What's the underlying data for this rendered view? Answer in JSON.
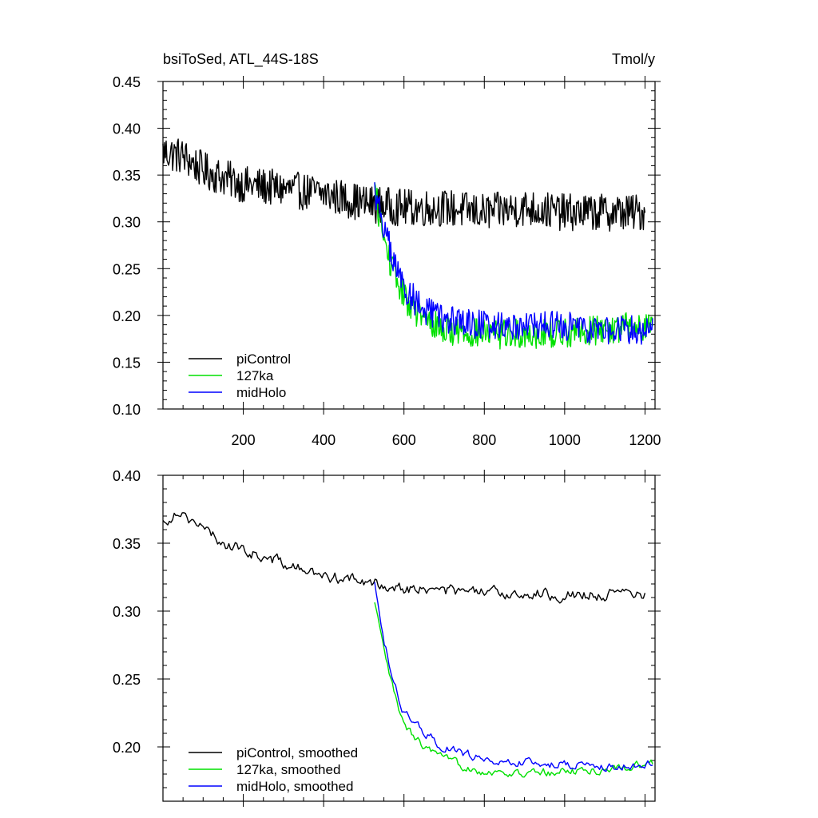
{
  "header": {
    "title_left": "bsiToSed, ATL_44S-18S",
    "title_right": "Tmol/y"
  },
  "colors": {
    "piControl": "#000000",
    "127ka": "#00e000",
    "midHolo": "#0000ff"
  },
  "chart_data": [
    {
      "type": "line",
      "title": "bsiToSed, ATL_44S-18S",
      "units": "Tmol/y",
      "xlim": [
        0,
        1225
      ],
      "ylim": [
        0.1,
        0.45
      ],
      "xticks": [
        200,
        400,
        600,
        800,
        1000,
        1200
      ],
      "xtick_labels": [
        "200",
        "400",
        "600",
        "800",
        "1000",
        "1200"
      ],
      "yticks": [
        0.1,
        0.15,
        0.2,
        0.25,
        0.3,
        0.35,
        0.4,
        0.45
      ],
      "ytick_labels": [
        "0.10",
        "0.15",
        "0.20",
        "0.25",
        "0.30",
        "0.35",
        "0.40",
        "0.45"
      ],
      "legend": {
        "location": "bottom-left",
        "entries": [
          "piControl",
          "127ka",
          "midHolo"
        ]
      },
      "series": [
        {
          "name": "piControl",
          "color": "#000000",
          "x": [
            0,
            50,
            100,
            200,
            300,
            400,
            500,
            600,
            700,
            800,
            900,
            1000,
            1100,
            1200
          ],
          "values": [
            0.375,
            0.37,
            0.355,
            0.34,
            0.335,
            0.33,
            0.32,
            0.315,
            0.315,
            0.31,
            0.315,
            0.31,
            0.31,
            0.31
          ]
        },
        {
          "name": "127ka",
          "color": "#00e000",
          "x": [
            527,
            550,
            575,
            600,
            650,
            700,
            800,
            900,
            1000,
            1100,
            1220
          ],
          "values": [
            0.335,
            0.28,
            0.245,
            0.22,
            0.195,
            0.185,
            0.18,
            0.18,
            0.182,
            0.185,
            0.19
          ]
        },
        {
          "name": "midHolo",
          "color": "#0000ff",
          "x": [
            527,
            550,
            575,
            600,
            650,
            700,
            800,
            900,
            1000,
            1100,
            1220
          ],
          "values": [
            0.335,
            0.295,
            0.255,
            0.23,
            0.205,
            0.195,
            0.19,
            0.19,
            0.188,
            0.185,
            0.185
          ]
        }
      ]
    },
    {
      "type": "line",
      "xlim": [
        0,
        1225
      ],
      "ylim": [
        0.16,
        0.4
      ],
      "xticks": [
        200,
        400,
        600,
        800,
        1000,
        1200
      ],
      "xtick_labels": [],
      "yticks": [
        0.2,
        0.25,
        0.3,
        0.35,
        0.4
      ],
      "ytick_labels": [
        "0.20",
        "0.25",
        "0.30",
        "0.35",
        "0.40"
      ],
      "legend": {
        "location": "bottom-left",
        "entries": [
          "piControl, smoothed",
          "127ka, smoothed",
          "midHolo, smoothed"
        ]
      },
      "series": [
        {
          "name": "piControl, smoothed",
          "color": "#000000",
          "x": [
            0,
            20,
            40,
            60,
            80,
            100,
            150,
            200,
            250,
            300,
            350,
            400,
            450,
            500,
            550,
            600,
            700,
            800,
            900,
            1000,
            1100,
            1200
          ],
          "values": [
            0.365,
            0.37,
            0.375,
            0.37,
            0.365,
            0.36,
            0.35,
            0.345,
            0.34,
            0.335,
            0.33,
            0.325,
            0.325,
            0.32,
            0.32,
            0.317,
            0.315,
            0.313,
            0.313,
            0.312,
            0.312,
            0.312
          ]
        },
        {
          "name": "127ka, smoothed",
          "color": "#00e000",
          "x": [
            527,
            550,
            575,
            600,
            650,
            700,
            800,
            900,
            1000,
            1100,
            1220
          ],
          "values": [
            0.305,
            0.27,
            0.24,
            0.215,
            0.2,
            0.19,
            0.182,
            0.18,
            0.182,
            0.183,
            0.188
          ]
        },
        {
          "name": "midHolo, smoothed",
          "color": "#0000ff",
          "x": [
            527,
            550,
            575,
            600,
            650,
            700,
            800,
            900,
            1000,
            1100,
            1220
          ],
          "values": [
            0.32,
            0.28,
            0.245,
            0.225,
            0.21,
            0.2,
            0.19,
            0.188,
            0.187,
            0.185,
            0.187
          ]
        }
      ]
    }
  ]
}
